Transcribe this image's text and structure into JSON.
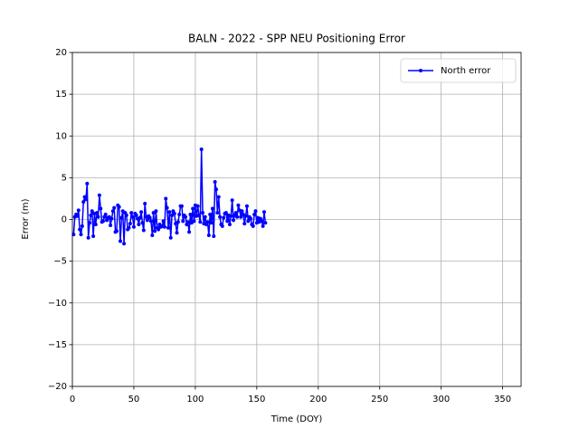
{
  "chart_data": {
    "type": "line",
    "title": "BALN - 2022 - SPP NEU Positioning Error",
    "x_label": "Time (DOY)",
    "y_label": "Error (m)",
    "xlim": [
      0,
      365
    ],
    "ylim": [
      -20,
      20
    ],
    "xticks": [
      0,
      50,
      100,
      150,
      200,
      250,
      300,
      350
    ],
    "yticks": [
      {
        "value": -20,
        "label": "−20"
      },
      {
        "value": -15,
        "label": "−15"
      },
      {
        "value": -10,
        "label": "−10"
      },
      {
        "value": -5,
        "label": "−5"
      },
      0,
      5,
      10,
      15,
      20
    ],
    "grid": true,
    "legend": "upper right",
    "x": [
      1,
      2,
      3,
      4,
      5,
      6,
      7,
      8,
      9,
      10,
      11,
      12,
      13,
      14,
      15,
      16,
      17,
      18,
      19,
      20,
      21,
      22,
      23,
      24,
      25,
      26,
      27,
      28,
      29,
      30,
      31,
      32,
      33,
      34,
      35,
      36,
      37,
      38,
      39,
      40,
      41,
      42,
      43,
      44,
      45,
      46,
      47,
      48,
      49,
      50,
      51,
      52,
      53,
      54,
      55,
      56,
      57,
      58,
      59,
      60,
      61,
      62,
      63,
      64,
      65,
      66,
      67,
      68,
      69,
      70,
      71,
      72,
      73,
      74,
      75,
      76,
      77,
      78,
      79,
      80,
      81,
      82,
      83,
      84,
      85,
      86,
      87,
      88,
      89,
      90,
      91,
      92,
      93,
      94,
      95,
      96,
      97,
      98,
      99,
      100,
      101,
      102,
      103,
      104,
      105,
      106,
      107,
      108,
      109,
      110,
      111,
      112,
      113,
      114,
      115,
      116,
      117,
      118,
      119,
      120,
      121,
      122,
      123,
      124,
      125,
      126,
      127,
      128,
      129,
      130,
      131,
      132,
      133,
      134,
      135,
      136,
      137,
      138,
      139,
      140,
      141,
      142,
      143,
      144,
      145,
      146,
      147,
      148,
      149,
      150,
      151,
      152,
      153,
      154,
      155,
      156,
      157
    ],
    "series": [
      {
        "name": "North error",
        "color": "#0000ff",
        "values": [
          -1.8,
          0.3,
          0.6,
          0.4,
          1.1,
          -1.2,
          -1.8,
          -0.8,
          2.1,
          2.7,
          2.4,
          4.3,
          -2.2,
          -0.4,
          0.5,
          1.0,
          -2.0,
          0.7,
          -0.6,
          0.8,
          0.3,
          2.9,
          1.3,
          -0.3,
          -0.2,
          0.3,
          0.6,
          -0.1,
          0.2,
          0.3,
          -0.7,
          0.1,
          1.0,
          1.4,
          -1.5,
          -1.4,
          1.7,
          1.5,
          -2.6,
          0.2,
          1.0,
          -2.9,
          0.8,
          0.5,
          -1.2,
          -1.0,
          -0.5,
          0.8,
          0.3,
          -0.9,
          0.7,
          0.5,
          0.1,
          -0.6,
          0.2,
          0.9,
          -0.4,
          -1.3,
          1.9,
          0.3,
          -0.1,
          0.4,
          0.2,
          -0.2,
          -1.9,
          0.8,
          -1.4,
          1.0,
          -1.0,
          -1.2,
          -0.6,
          -0.9,
          -0.8,
          -0.2,
          -0.9,
          2.5,
          1.4,
          -1.0,
          0.9,
          -2.2,
          0.5,
          1.0,
          0.7,
          -0.5,
          -1.6,
          -0.3,
          0.6,
          1.6,
          1.6,
          -0.2,
          0.5,
          0.3,
          -0.6,
          -0.3,
          -1.5,
          0.6,
          -0.4,
          1.3,
          -0.2,
          1.7,
          0.4,
          1.6,
          0.5,
          -0.3,
          8.4,
          0.8,
          -0.5,
          0.3,
          -0.6,
          -0.3,
          -1.9,
          0.6,
          -0.4,
          1.3,
          -2.0,
          4.5,
          3.6,
          0.8,
          2.7,
          0.3,
          -0.6,
          -0.8,
          0.2,
          0.7,
          0.8,
          -0.2,
          0.5,
          -0.6,
          0.4,
          2.3,
          -0.1,
          0.5,
          0.8,
          0.3,
          1.7,
          1.1,
          0.3,
          1.0,
          0.6,
          -0.5,
          0.4,
          1.6,
          -0.2,
          0.3,
          0.1,
          -0.6,
          -0.8,
          0.6,
          1.0,
          -0.4,
          0.2,
          -0.3,
          0.1,
          -0.2,
          -0.8,
          0.9,
          -0.4
        ]
      }
    ]
  }
}
